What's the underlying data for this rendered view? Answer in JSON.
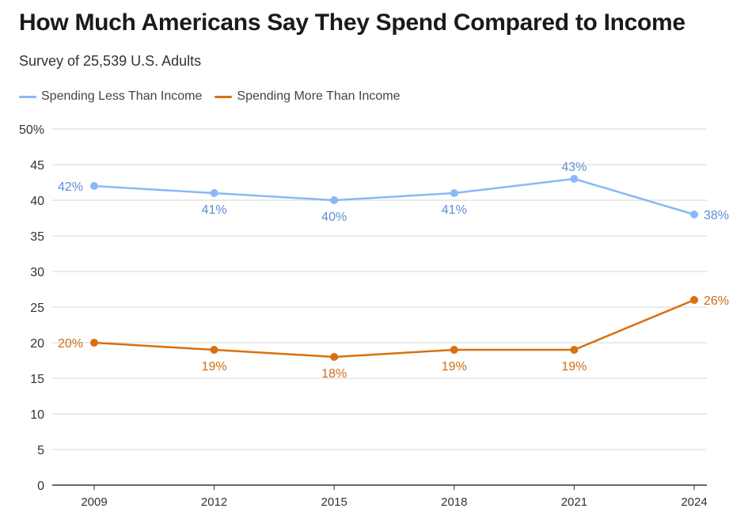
{
  "chart_data": {
    "type": "line",
    "title": "How Much Americans Say They Spend Compared to Income",
    "subtitle": "Survey of 25,539 U.S. Adults",
    "x": [
      "2009",
      "2012",
      "2015",
      "2018",
      "2021",
      "2024"
    ],
    "ylim": [
      0,
      50
    ],
    "yticks": [
      "0",
      "5",
      "10",
      "15",
      "20",
      "25",
      "30",
      "35",
      "40",
      "45",
      "50%"
    ],
    "grid": true,
    "legend": "top-left",
    "series": [
      {
        "name": "Spending Less Than Income",
        "color": "#8ab8f7",
        "label_color": "#5b8ed6",
        "values": [
          42,
          41,
          40,
          41,
          43,
          38
        ],
        "labels": [
          "42%",
          "41%",
          "40%",
          "41%",
          "43%",
          "38%"
        ]
      },
      {
        "name": "Spending More Than Income",
        "color": "#d9700f",
        "label_color": "#cf6e17",
        "values": [
          20,
          19,
          18,
          19,
          19,
          26
        ],
        "labels": [
          "20%",
          "19%",
          "18%",
          "19%",
          "19%",
          "26%"
        ]
      }
    ]
  }
}
